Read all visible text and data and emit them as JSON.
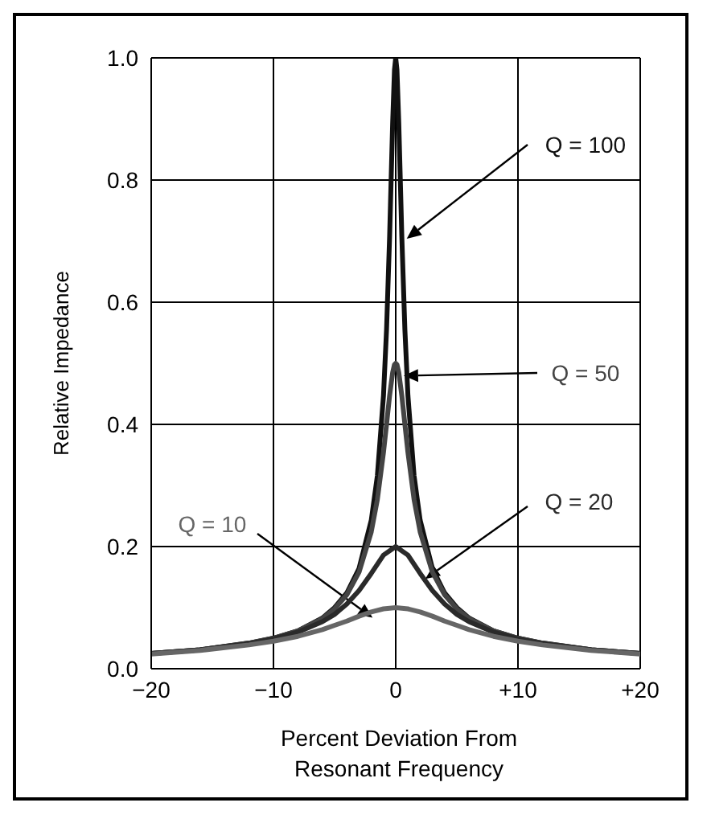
{
  "chart_data": {
    "type": "line",
    "xlabel": "Percent Deviation From Resonant Frequency",
    "ylabel": "Relative Impedance",
    "xlim": [
      -20,
      20
    ],
    "xticks": [
      {
        "value": -20,
        "label": "−20"
      },
      {
        "value": -10,
        "label": "−10"
      },
      0,
      {
        "value": 10,
        "label": "+10"
      },
      {
        "value": 20,
        "label": "+20"
      }
    ],
    "ylim": [
      0,
      1
    ],
    "yticks": [
      {
        "value": 0,
        "label": "0.0"
      },
      {
        "value": 0.2,
        "label": "0.2"
      },
      {
        "value": 0.4,
        "label": "0.4"
      },
      {
        "value": 0.6,
        "label": "0.6"
      },
      {
        "value": 0.8,
        "label": "0.8"
      },
      {
        "value": 1,
        "label": "1.0"
      }
    ],
    "grid": true,
    "series": [
      {
        "name": "Q = 100",
        "color": "#111111",
        "x": [
          -20,
          -16,
          -12,
          -10,
          -8,
          -6,
          -5,
          -4,
          -3,
          -2,
          -1.5,
          -1,
          -0.75,
          -0.5,
          -0.25,
          -0.1,
          0,
          0.1,
          0.25,
          0.5,
          0.75,
          1,
          1.5,
          2,
          3,
          4,
          5,
          6,
          8,
          10,
          12,
          16,
          20
        ],
        "values": [
          0.025,
          0.031,
          0.042,
          0.05,
          0.062,
          0.083,
          0.1,
          0.124,
          0.164,
          0.243,
          0.316,
          0.447,
          0.555,
          0.707,
          0.894,
          0.981,
          1,
          0.981,
          0.894,
          0.707,
          0.555,
          0.447,
          0.316,
          0.243,
          0.164,
          0.124,
          0.1,
          0.083,
          0.062,
          0.05,
          0.042,
          0.031,
          0.025
        ]
      },
      {
        "name": "Q = 50",
        "color": "#444444",
        "x": [
          -20,
          -16,
          -12,
          -10,
          -8,
          -6,
          -5,
          -4,
          -3,
          -2,
          -1.5,
          -1,
          -0.75,
          -0.5,
          -0.25,
          -0.1,
          0,
          0.1,
          0.25,
          0.5,
          0.75,
          1,
          1.5,
          2,
          3,
          4,
          5,
          6,
          8,
          10,
          12,
          16,
          20
        ],
        "values": [
          0.025,
          0.031,
          0.042,
          0.05,
          0.062,
          0.082,
          0.098,
          0.121,
          0.158,
          0.224,
          0.277,
          0.354,
          0.4,
          0.447,
          0.485,
          0.498,
          0.5,
          0.498,
          0.485,
          0.447,
          0.4,
          0.354,
          0.277,
          0.224,
          0.158,
          0.121,
          0.098,
          0.082,
          0.062,
          0.05,
          0.042,
          0.031,
          0.025
        ]
      },
      {
        "name": "Q = 20",
        "color": "#2a2a2a",
        "x": [
          -20,
          -16,
          -12,
          -10,
          -8,
          -6,
          -5,
          -4,
          -3,
          -2,
          -1,
          0,
          1,
          2,
          3,
          4,
          5,
          6,
          8,
          10,
          12,
          16,
          20
        ],
        "values": [
          0.025,
          0.031,
          0.041,
          0.049,
          0.06,
          0.077,
          0.089,
          0.106,
          0.128,
          0.156,
          0.186,
          0.2,
          0.186,
          0.156,
          0.128,
          0.106,
          0.089,
          0.077,
          0.06,
          0.049,
          0.041,
          0.031,
          0.025
        ]
      },
      {
        "name": "Q = 10",
        "color": "#666666",
        "x": [
          -20,
          -16,
          -12,
          -10,
          -8,
          -6,
          -5,
          -4,
          -3,
          -2,
          -1,
          0,
          1,
          2,
          3,
          4,
          5,
          6,
          8,
          10,
          12,
          16,
          20
        ],
        "values": [
          0.024,
          0.03,
          0.039,
          0.045,
          0.053,
          0.064,
          0.071,
          0.078,
          0.086,
          0.093,
          0.098,
          0.1,
          0.098,
          0.093,
          0.086,
          0.078,
          0.071,
          0.064,
          0.053,
          0.045,
          0.039,
          0.03,
          0.024
        ]
      }
    ]
  }
}
